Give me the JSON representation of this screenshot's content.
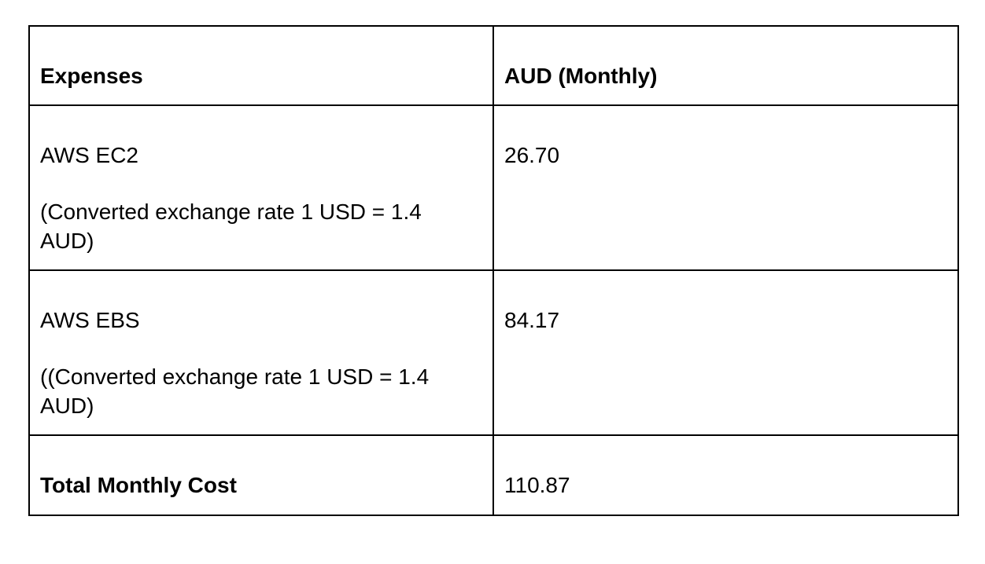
{
  "table": {
    "headers": [
      "Expenses",
      "AUD (Monthly)"
    ],
    "rows": [
      {
        "expense": "AWS EC2",
        "note": "(Converted exchange rate 1 USD = 1.4 AUD)",
        "amount": "26.70"
      },
      {
        "expense": "AWS EBS",
        "note": "((Converted exchange rate 1 USD = 1.4 AUD)",
        "amount": "84.17"
      }
    ],
    "total": {
      "label": "Total Monthly Cost",
      "amount": "110.87"
    }
  }
}
